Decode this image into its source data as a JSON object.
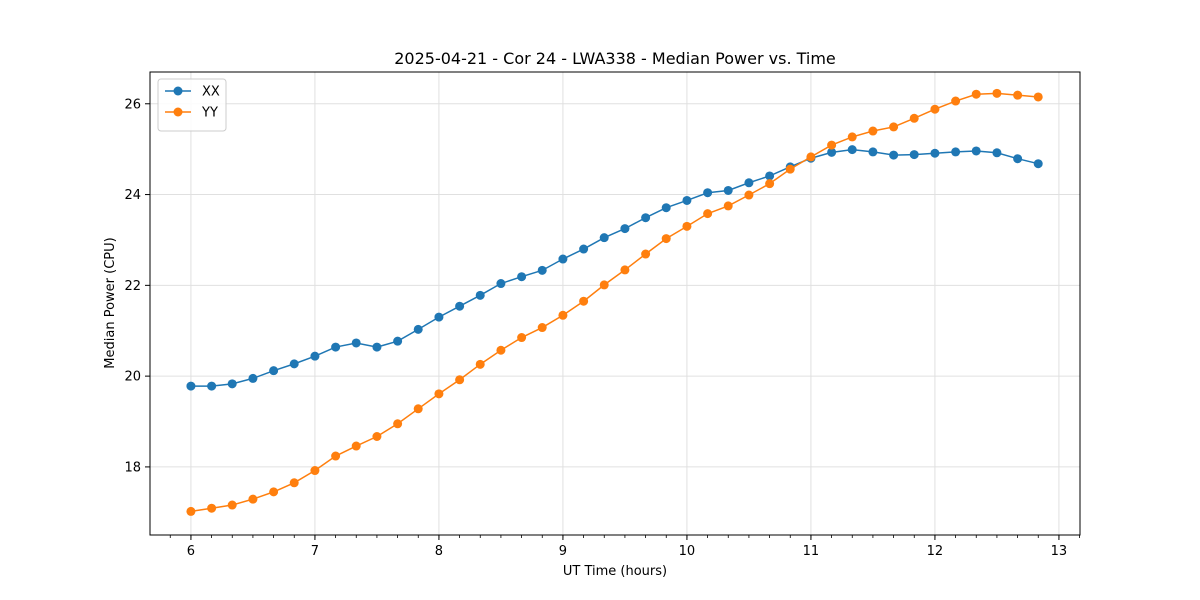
{
  "chart_data": {
    "type": "line",
    "title": "2025-04-21 - Cor 24 - LWA338 - Median Power vs. Time",
    "xlabel": "UT Time (hours)",
    "ylabel": "Median Power (CPU)",
    "xlim": [
      5.67,
      13.17
    ],
    "ylim": [
      16.5,
      26.7
    ],
    "xticks": [
      6,
      7,
      8,
      9,
      10,
      11,
      12,
      13
    ],
    "yticks": [
      18,
      20,
      22,
      24,
      26
    ],
    "grid": true,
    "legend_position": "upper-left",
    "x": [
      6.0,
      6.167,
      6.333,
      6.5,
      6.667,
      6.833,
      7.0,
      7.167,
      7.333,
      7.5,
      7.667,
      7.833,
      8.0,
      8.167,
      8.333,
      8.5,
      8.667,
      8.833,
      9.0,
      9.167,
      9.333,
      9.5,
      9.667,
      9.833,
      10.0,
      10.167,
      10.333,
      10.5,
      10.667,
      10.833,
      11.0,
      11.167,
      11.333,
      11.5,
      11.667,
      11.833,
      12.0,
      12.167,
      12.333,
      12.5,
      12.667,
      12.833
    ],
    "series": [
      {
        "name": "XX",
        "color": "#1f77b4",
        "values": [
          19.78,
          19.78,
          19.83,
          19.95,
          20.12,
          20.27,
          20.44,
          20.64,
          20.73,
          20.64,
          20.77,
          21.03,
          21.3,
          21.54,
          21.78,
          22.04,
          22.19,
          22.33,
          22.58,
          22.8,
          23.05,
          23.25,
          23.49,
          23.71,
          23.87,
          24.04,
          24.09,
          24.26,
          24.41,
          24.61,
          24.8,
          24.93,
          24.99,
          24.94,
          24.87,
          24.88,
          24.91,
          24.94,
          24.96,
          24.92,
          24.79,
          24.68
        ]
      },
      {
        "name": "YY",
        "color": "#ff7f0e",
        "values": [
          17.02,
          17.09,
          17.16,
          17.29,
          17.45,
          17.65,
          17.92,
          18.24,
          18.46,
          18.67,
          18.95,
          19.28,
          19.61,
          19.92,
          20.26,
          20.57,
          20.85,
          21.07,
          21.34,
          21.65,
          22.01,
          22.34,
          22.69,
          23.03,
          23.3,
          23.58,
          23.75,
          23.99,
          24.24,
          24.56,
          24.83,
          25.09,
          25.27,
          25.4,
          25.49,
          25.68,
          25.88,
          26.06,
          26.21,
          26.23,
          26.19,
          26.15
        ]
      }
    ]
  }
}
